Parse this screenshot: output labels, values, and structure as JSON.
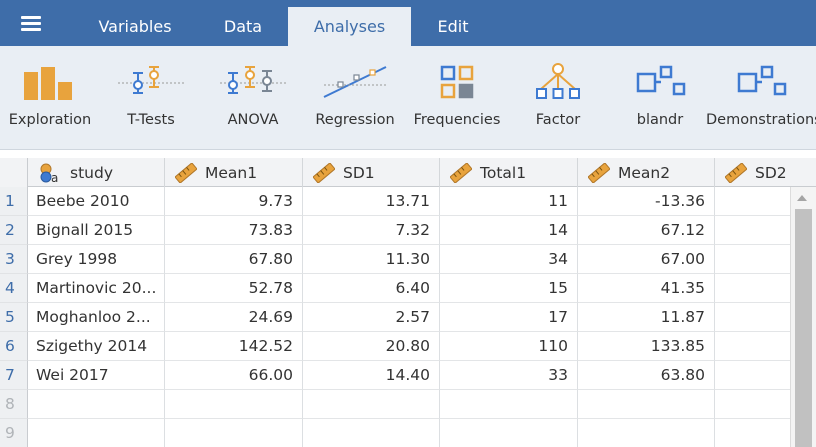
{
  "menu": {
    "icon": "hamburger-menu-icon"
  },
  "tabs": [
    {
      "label": "Variables",
      "active": false
    },
    {
      "label": "Data",
      "active": false
    },
    {
      "label": "Analyses",
      "active": true
    },
    {
      "label": "Edit",
      "active": false
    }
  ],
  "ribbon": [
    {
      "label": "Exploration",
      "icon": "bar-chart-icon"
    },
    {
      "label": "T-Tests",
      "icon": "t-tests-icon"
    },
    {
      "label": "ANOVA",
      "icon": "anova-icon"
    },
    {
      "label": "Regression",
      "icon": "regression-icon"
    },
    {
      "label": "Frequencies",
      "icon": "frequencies-icon"
    },
    {
      "label": "Factor",
      "icon": "factor-icon"
    },
    {
      "label": "blandr",
      "icon": "module-icon"
    },
    {
      "label": "Demonstrations",
      "icon": "module-icon"
    }
  ],
  "columns": [
    {
      "name": "study",
      "type": "nominal-text"
    },
    {
      "name": "Mean1",
      "type": "continuous"
    },
    {
      "name": "SD1",
      "type": "continuous"
    },
    {
      "name": "Total1",
      "type": "continuous"
    },
    {
      "name": "Mean2",
      "type": "continuous"
    },
    {
      "name": "SD2",
      "type": "continuous"
    }
  ],
  "rows": [
    {
      "n": "1",
      "cells": [
        "Beebe 2010",
        "9.73",
        "13.71",
        "11",
        "-13.36",
        ""
      ]
    },
    {
      "n": "2",
      "cells": [
        "Bignall 2015",
        "73.83",
        "7.32",
        "14",
        "67.12",
        ""
      ]
    },
    {
      "n": "3",
      "cells": [
        "Grey 1998",
        "67.80",
        "11.30",
        "34",
        "67.00",
        ""
      ]
    },
    {
      "n": "4",
      "cells": [
        "Martinovic 20...",
        "52.78",
        "6.40",
        "15",
        "41.35",
        ""
      ]
    },
    {
      "n": "5",
      "cells": [
        "Moghanloo 2...",
        "24.69",
        "2.57",
        "17",
        "11.87",
        ""
      ]
    },
    {
      "n": "6",
      "cells": [
        "Szigethy 2014",
        "142.52",
        "20.80",
        "110",
        "133.85",
        ""
      ]
    },
    {
      "n": "7",
      "cells": [
        "Wei 2017",
        "66.00",
        "14.40",
        "33",
        "63.80",
        ""
      ]
    },
    {
      "n": "8",
      "cells": [
        "",
        "",
        "",
        "",
        "",
        ""
      ]
    },
    {
      "n": "9",
      "cells": [
        "",
        "",
        "",
        "",
        "",
        ""
      ]
    }
  ],
  "colors": {
    "topbar": "#3e6da9",
    "ribbon": "#e9eef4",
    "accent_orange": "#e8a33d",
    "accent_blue": "#3e7ad1"
  }
}
